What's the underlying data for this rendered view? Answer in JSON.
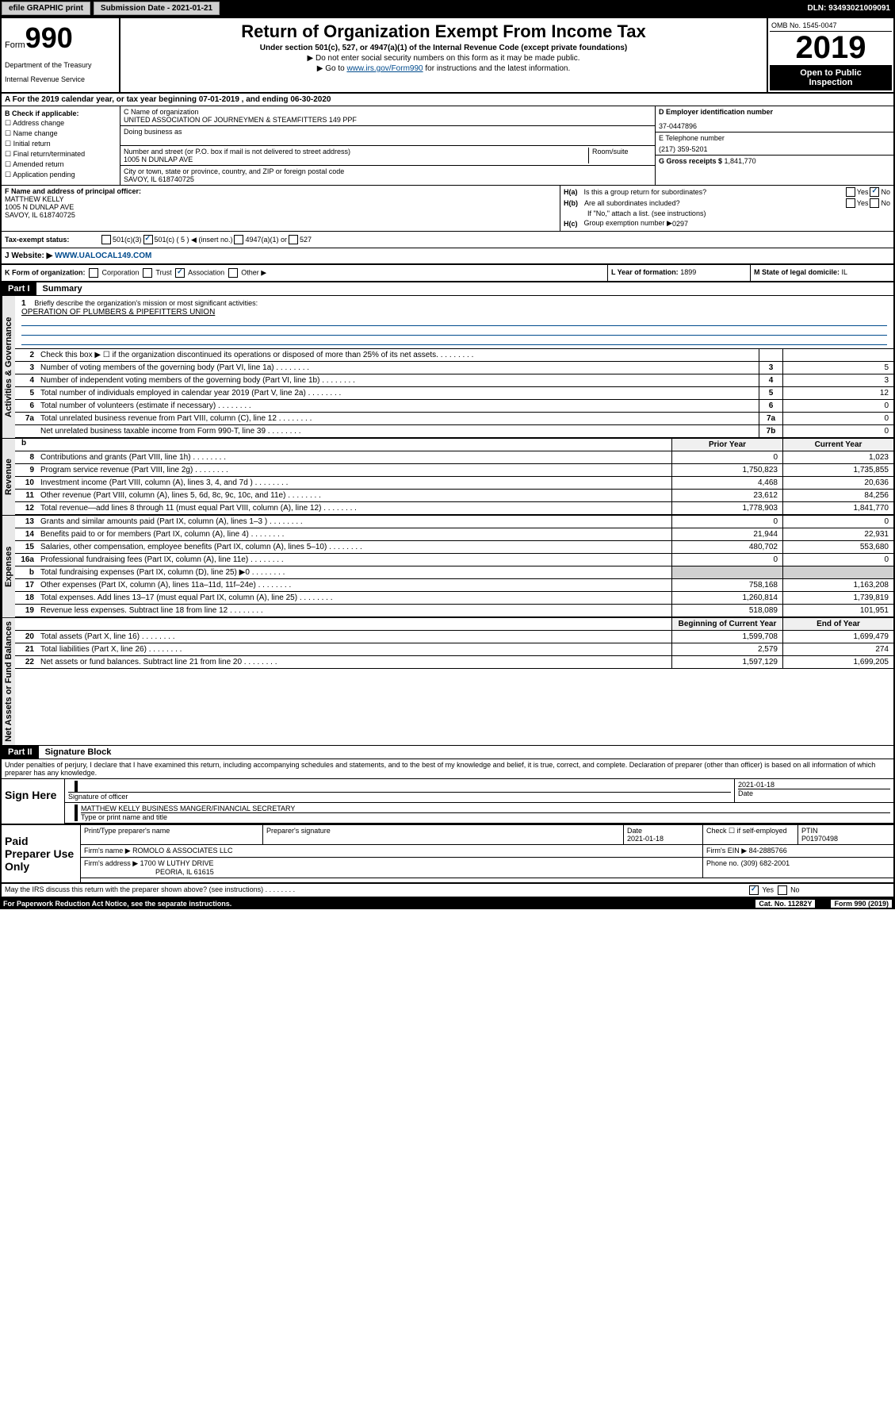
{
  "topbar": {
    "efile": "efile GRAPHIC print",
    "submission": "Submission Date - 2021-01-21",
    "dln": "DLN: 93493021009091"
  },
  "header": {
    "form_prefix": "Form",
    "form_num": "990",
    "dept1": "Department of the Treasury",
    "dept2": "Internal Revenue Service",
    "title": "Return of Organization Exempt From Income Tax",
    "subtitle": "Under section 501(c), 527, or 4947(a)(1) of the Internal Revenue Code (except private foundations)",
    "note1": "▶ Do not enter social security numbers on this form as it may be made public.",
    "note2_pre": "▶ Go to ",
    "note2_link": "www.irs.gov/Form990",
    "note2_post": " for instructions and the latest information.",
    "omb": "OMB No. 1545-0047",
    "year": "2019",
    "inspection1": "Open to Public",
    "inspection2": "Inspection"
  },
  "period": "A For the 2019 calendar year, or tax year beginning 07-01-2019    , and ending 06-30-2020",
  "colb": {
    "title": "B Check if applicable:",
    "items": [
      "☐ Address change",
      "☐ Name change",
      "☐ Initial return",
      "☐ Final return/terminated",
      "☐ Amended return",
      "☐ Application pending"
    ]
  },
  "colc": {
    "name_label": "C Name of organization",
    "name": "UNITED ASSOCIATION OF JOURNEYMEN & STEAMFITTERS 149 PPF",
    "dba_label": "Doing business as",
    "addr_label": "Number and street (or P.O. box if mail is not delivered to street address)",
    "room_label": "Room/suite",
    "addr": "1005 N DUNLAP AVE",
    "city_label": "City or town, state or province, country, and ZIP or foreign postal code",
    "city": "SAVOY, IL  618740725"
  },
  "cold": {
    "ein_label": "D Employer identification number",
    "ein": "37-0447896",
    "tel_label": "E Telephone number",
    "tel": "(217) 359-5201",
    "gross_label": "G Gross receipts $ ",
    "gross": "1,841,770"
  },
  "f": {
    "label": "F  Name and address of principal officer:",
    "name": "MATTHEW KELLY",
    "addr1": "1005 N DUNLAP AVE",
    "addr2": "SAVOY, IL  618740725"
  },
  "h": {
    "a_label": "H(a)",
    "a_text": "Is this a group return for subordinates?",
    "b_label": "H(b)",
    "b_text": "Are all subordinates included?",
    "note": "If \"No,\" attach a list. (see instructions)",
    "c_label": "H(c)",
    "c_text": "Group exemption number ▶",
    "c_val": "0297",
    "yes": "Yes",
    "no": "No"
  },
  "tax_status": {
    "label": "Tax-exempt status:",
    "opts": [
      "501(c)(3)",
      "501(c) ( 5 ) ◀ (insert no.)",
      "4947(a)(1) or",
      "527"
    ]
  },
  "website": {
    "label": "J Website: ▶",
    "val": "WWW.UALOCAL149.COM"
  },
  "k": {
    "label": "K Form of organization:",
    "opts": [
      "Corporation",
      "Trust",
      "Association",
      "Other ▶"
    ]
  },
  "l": {
    "label": "L Year of formation: ",
    "val": "1899"
  },
  "m": {
    "label": "M State of legal domicile: ",
    "val": "IL"
  },
  "part1": {
    "num": "Part I",
    "title": "Summary"
  },
  "mission": {
    "num": "1",
    "label": "Briefly describe the organization's mission or most significant activities:",
    "val": "OPERATION OF PLUMBERS & PIPEFITTERS UNION"
  },
  "gov_rows": [
    {
      "n": "2",
      "d": "Check this box ▶ ☐  if the organization discontinued its operations or disposed of more than 25% of its net assets.",
      "b": "",
      "v": ""
    },
    {
      "n": "3",
      "d": "Number of voting members of the governing body (Part VI, line 1a)",
      "b": "3",
      "v": "5"
    },
    {
      "n": "4",
      "d": "Number of independent voting members of the governing body (Part VI, line 1b)",
      "b": "4",
      "v": "3"
    },
    {
      "n": "5",
      "d": "Total number of individuals employed in calendar year 2019 (Part V, line 2a)",
      "b": "5",
      "v": "12"
    },
    {
      "n": "6",
      "d": "Total number of volunteers (estimate if necessary)",
      "b": "6",
      "v": "0"
    },
    {
      "n": "7a",
      "d": "Total unrelated business revenue from Part VIII, column (C), line 12",
      "b": "7a",
      "v": "0"
    },
    {
      "n": "",
      "d": "Net unrelated business taxable income from Form 990-T, line 39",
      "b": "7b",
      "v": "0"
    }
  ],
  "year_headers": {
    "b": "b",
    "prior": "Prior Year",
    "current": "Current Year"
  },
  "rev_rows": [
    {
      "n": "8",
      "d": "Contributions and grants (Part VIII, line 1h)",
      "p": "0",
      "c": "1,023"
    },
    {
      "n": "9",
      "d": "Program service revenue (Part VIII, line 2g)",
      "p": "1,750,823",
      "c": "1,735,855"
    },
    {
      "n": "10",
      "d": "Investment income (Part VIII, column (A), lines 3, 4, and 7d )",
      "p": "4,468",
      "c": "20,636"
    },
    {
      "n": "11",
      "d": "Other revenue (Part VIII, column (A), lines 5, 6d, 8c, 9c, 10c, and 11e)",
      "p": "23,612",
      "c": "84,256"
    },
    {
      "n": "12",
      "d": "Total revenue—add lines 8 through 11 (must equal Part VIII, column (A), line 12)",
      "p": "1,778,903",
      "c": "1,841,770"
    }
  ],
  "exp_rows": [
    {
      "n": "13",
      "d": "Grants and similar amounts paid (Part IX, column (A), lines 1–3 )",
      "p": "0",
      "c": "0"
    },
    {
      "n": "14",
      "d": "Benefits paid to or for members (Part IX, column (A), line 4)",
      "p": "21,944",
      "c": "22,931"
    },
    {
      "n": "15",
      "d": "Salaries, other compensation, employee benefits (Part IX, column (A), lines 5–10)",
      "p": "480,702",
      "c": "553,680"
    },
    {
      "n": "16a",
      "d": "Professional fundraising fees (Part IX, column (A), line 11e)",
      "p": "0",
      "c": "0"
    },
    {
      "n": "b",
      "d": "Total fundraising expenses (Part IX, column (D), line 25) ▶0",
      "p": "",
      "c": ""
    },
    {
      "n": "17",
      "d": "Other expenses (Part IX, column (A), lines 11a–11d, 11f–24e)",
      "p": "758,168",
      "c": "1,163,208"
    },
    {
      "n": "18",
      "d": "Total expenses. Add lines 13–17 (must equal Part IX, column (A), line 25)",
      "p": "1,260,814",
      "c": "1,739,819"
    },
    {
      "n": "19",
      "d": "Revenue less expenses. Subtract line 18 from line 12",
      "p": "518,089",
      "c": "101,951"
    }
  ],
  "net_headers": {
    "begin": "Beginning of Current Year",
    "end": "End of Year"
  },
  "net_rows": [
    {
      "n": "20",
      "d": "Total assets (Part X, line 16)",
      "p": "1,599,708",
      "c": "1,699,479"
    },
    {
      "n": "21",
      "d": "Total liabilities (Part X, line 26)",
      "p": "2,579",
      "c": "274"
    },
    {
      "n": "22",
      "d": "Net assets or fund balances. Subtract line 21 from line 20",
      "p": "1,597,129",
      "c": "1,699,205"
    }
  ],
  "part2": {
    "num": "Part II",
    "title": "Signature Block"
  },
  "penalties": "Under penalties of perjury, I declare that I have examined this return, including accompanying schedules and statements, and to the best of my knowledge and belief, it is true, correct, and complete. Declaration of preparer (other than officer) is based on all information of which preparer has any knowledge.",
  "sign": {
    "label": "Sign Here",
    "sig_label": "Signature of officer",
    "date": "2021-01-18",
    "date_label": "Date",
    "name": "MATTHEW KELLY BUSINESS MANGER/FINANCIAL SECRETARY",
    "name_label": "Type or print name and title"
  },
  "preparer": {
    "label": "Paid Preparer Use Only",
    "headers": [
      "Print/Type preparer's name",
      "Preparer's signature",
      "Date",
      "",
      "PTIN"
    ],
    "date": "2021-01-18",
    "check_label": "Check ☐ if self-employed",
    "ptin": "P01970498",
    "firm_label": "Firm's name    ▶",
    "firm": "ROMOLO & ASSOCIATES LLC",
    "ein_label": "Firm's EIN ▶",
    "ein": "84-2885766",
    "addr_label": "Firm's address ▶",
    "addr1": "1700 W LUTHY DRIVE",
    "addr2": "PEORIA, IL  61615",
    "phone_label": "Phone no.",
    "phone": "(309) 682-2001"
  },
  "discuss": "May the IRS discuss this return with the preparer shown above? (see instructions)",
  "paperwork": {
    "text": "For Paperwork Reduction Act Notice, see the separate instructions.",
    "cat": "Cat. No. 11282Y",
    "form": "Form 990 (2019)"
  },
  "labels": {
    "activities": "Activities & Governance",
    "revenue": "Revenue",
    "expenses": "Expenses",
    "netassets": "Net Assets or Fund Balances"
  }
}
